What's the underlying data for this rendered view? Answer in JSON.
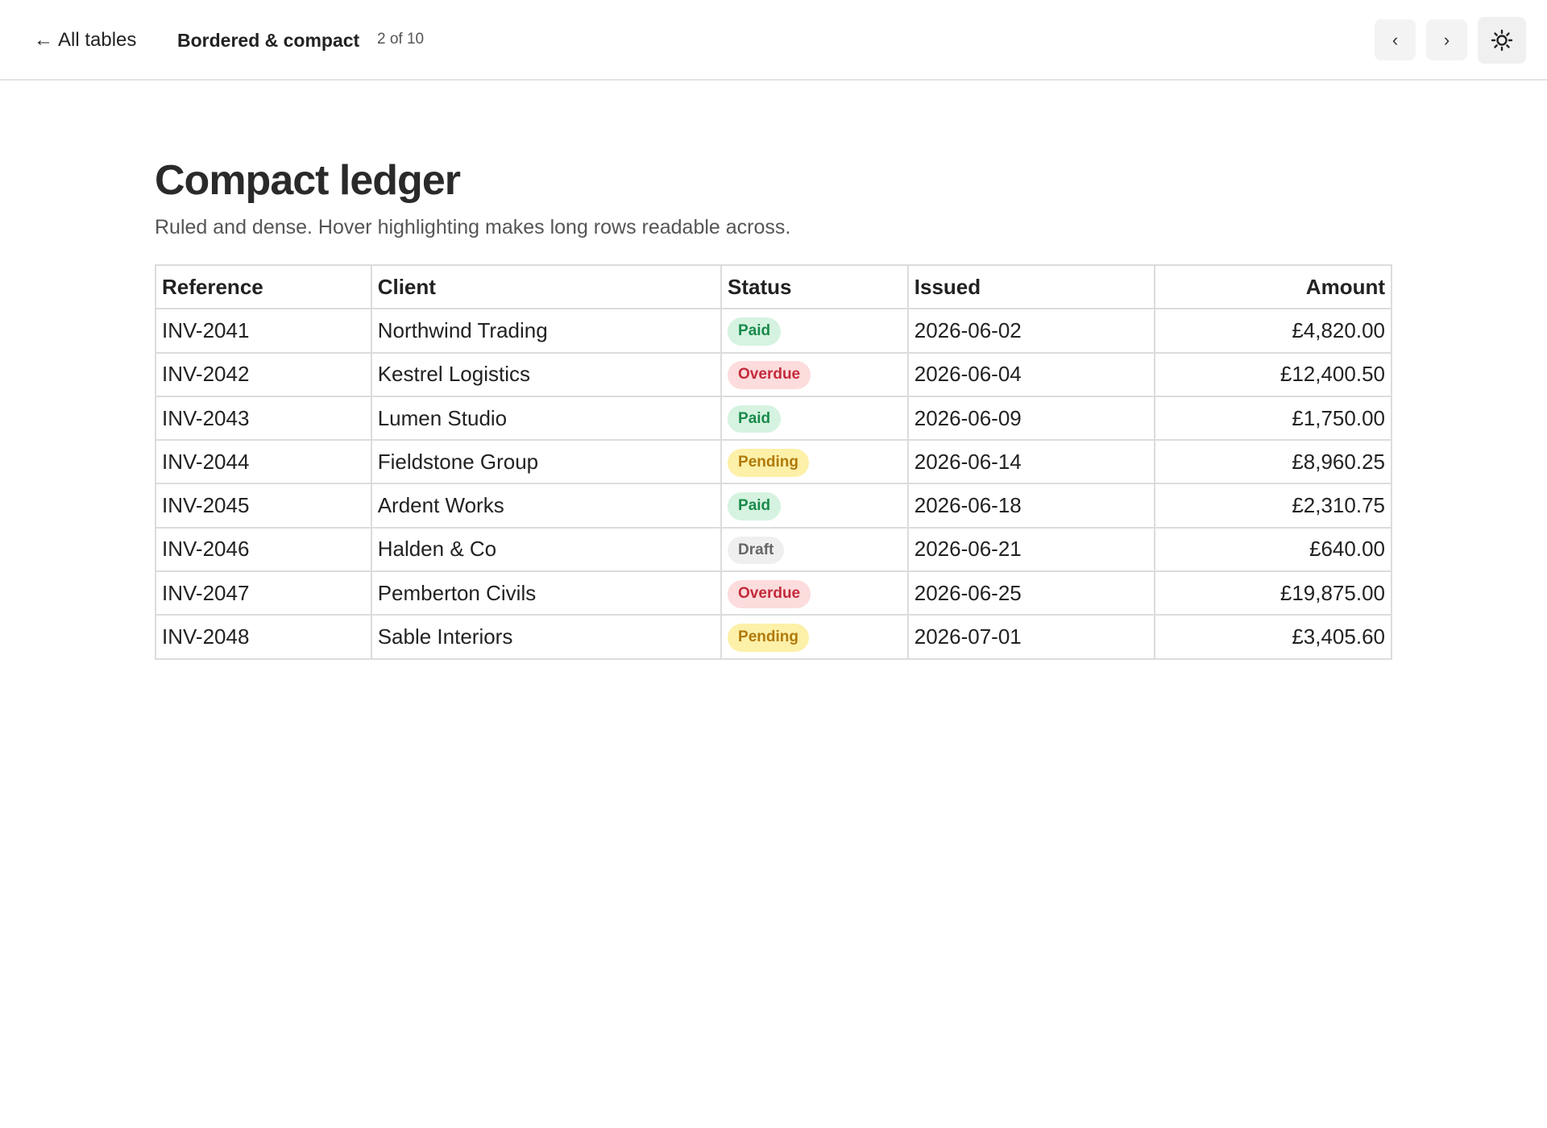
{
  "header": {
    "back_label": "All tables",
    "section_title": "Bordered & compact",
    "position": "2 of 10",
    "prev_label": "‹",
    "next_label": "›",
    "theme_icon": "sun-icon"
  },
  "page": {
    "title": "Compact ledger",
    "subtitle": "Ruled and dense. Hover highlighting makes long rows readable across."
  },
  "table": {
    "columns": [
      "Reference",
      "Client",
      "Status",
      "Issued",
      "Amount"
    ],
    "rows": [
      {
        "reference": "INV-2041",
        "client": "Northwind Trading",
        "status": "Paid",
        "status_key": "paid",
        "issued": "2026-06-02",
        "amount": "£4,820.00"
      },
      {
        "reference": "INV-2042",
        "client": "Kestrel Logistics",
        "status": "Overdue",
        "status_key": "overdue",
        "issued": "2026-06-04",
        "amount": "£12,400.50"
      },
      {
        "reference": "INV-2043",
        "client": "Lumen Studio",
        "status": "Paid",
        "status_key": "paid",
        "issued": "2026-06-09",
        "amount": "£1,750.00"
      },
      {
        "reference": "INV-2044",
        "client": "Fieldstone Group",
        "status": "Pending",
        "status_key": "pending",
        "issued": "2026-06-14",
        "amount": "£8,960.25"
      },
      {
        "reference": "INV-2045",
        "client": "Ardent Works",
        "status": "Paid",
        "status_key": "paid",
        "issued": "2026-06-18",
        "amount": "£2,310.75"
      },
      {
        "reference": "INV-2046",
        "client": "Halden & Co",
        "status": "Draft",
        "status_key": "draft",
        "issued": "2026-06-21",
        "amount": "£640.00"
      },
      {
        "reference": "INV-2047",
        "client": "Pemberton Civils",
        "status": "Overdue",
        "status_key": "overdue",
        "issued": "2026-06-25",
        "amount": "£19,875.00"
      },
      {
        "reference": "INV-2048",
        "client": "Sable Interiors",
        "status": "Pending",
        "status_key": "pending",
        "issued": "2026-07-01",
        "amount": "£3,405.60"
      }
    ]
  },
  "colors": {
    "paid_bg": "#d5f3e0",
    "paid_fg": "#1a8a4b",
    "overdue_bg": "#fcdcdc",
    "overdue_fg": "#c42a3c",
    "pending_bg": "#fdf0a8",
    "pending_fg": "#b07a0a",
    "draft_bg": "#efefef",
    "draft_fg": "#666666"
  }
}
